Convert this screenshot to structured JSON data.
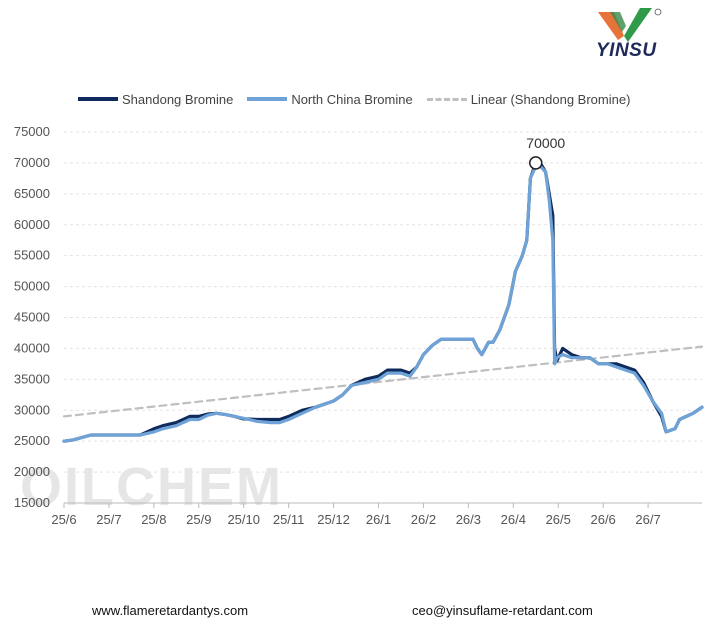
{
  "brand": {
    "logo_text": "YINSU",
    "watermark_text": "OILCHEM"
  },
  "footer": {
    "website": "www.flameretardantys.com",
    "email": "ceo@yinsuflame-retardant.com"
  },
  "colors": {
    "shandong": "#0e2b5c",
    "north_china": "#6fa3d8",
    "linear": "#bfbfbf",
    "grid": "#e3e3e3"
  },
  "chart_data": {
    "type": "line",
    "title": "",
    "xlabel": "",
    "ylabel": "",
    "ylim": [
      15000,
      75000
    ],
    "yticks": [
      15000,
      20000,
      25000,
      30000,
      35000,
      40000,
      45000,
      50000,
      55000,
      60000,
      65000,
      70000,
      75000
    ],
    "xlim": [
      "25/6",
      "26/7 (end)"
    ],
    "xticks": [
      "25/6",
      "25/7",
      "25/8",
      "25/9",
      "25/10",
      "25/11",
      "25/12",
      "26/1",
      "26/2",
      "26/3",
      "26/4",
      "26/5",
      "26/6",
      "26/7"
    ],
    "x_tick_positions_months": [
      0,
      1,
      2,
      3,
      4,
      5,
      6,
      7,
      8,
      9,
      10,
      11,
      12,
      13
    ],
    "grid": "horizontal",
    "legend_position": "top",
    "series": [
      {
        "name": "Shandong Bromine",
        "style": "solid",
        "points": [
          [
            0.0,
            25000
          ],
          [
            0.2,
            25200
          ],
          [
            0.6,
            26000
          ],
          [
            1.0,
            26000
          ],
          [
            1.5,
            26000
          ],
          [
            1.7,
            26000
          ],
          [
            2.0,
            27000
          ],
          [
            2.2,
            27500
          ],
          [
            2.5,
            28000
          ],
          [
            2.8,
            29000
          ],
          [
            3.0,
            29000
          ],
          [
            3.2,
            29400
          ],
          [
            3.4,
            29500
          ],
          [
            3.6,
            29300
          ],
          [
            3.8,
            29000
          ],
          [
            4.0,
            28600
          ],
          [
            4.3,
            28500
          ],
          [
            4.6,
            28500
          ],
          [
            4.8,
            28500
          ],
          [
            5.0,
            29000
          ],
          [
            5.3,
            30000
          ],
          [
            5.6,
            30500
          ],
          [
            6.0,
            31500
          ],
          [
            6.2,
            32500
          ],
          [
            6.4,
            34000
          ],
          [
            6.7,
            35000
          ],
          [
            7.0,
            35500
          ],
          [
            7.2,
            36500
          ],
          [
            7.5,
            36500
          ],
          [
            7.7,
            36000
          ],
          [
            7.85,
            37000
          ],
          [
            8.0,
            39000
          ],
          [
            8.2,
            40500
          ],
          [
            8.4,
            41500
          ],
          [
            8.6,
            41500
          ],
          [
            8.8,
            41500
          ],
          [
            9.0,
            41500
          ],
          [
            9.1,
            41500
          ],
          [
            9.2,
            40000
          ],
          [
            9.3,
            39000
          ],
          [
            9.45,
            41000
          ],
          [
            9.55,
            41000
          ],
          [
            9.7,
            43000
          ],
          [
            9.9,
            47000
          ],
          [
            10.05,
            52500
          ],
          [
            10.2,
            55000
          ],
          [
            10.3,
            57500
          ],
          [
            10.38,
            67500
          ],
          [
            10.5,
            70000
          ],
          [
            10.6,
            70000
          ],
          [
            10.72,
            68500
          ],
          [
            10.8,
            65000
          ],
          [
            10.88,
            61500
          ],
          [
            10.92,
            40000
          ],
          [
            10.97,
            38000
          ],
          [
            11.1,
            40000
          ],
          [
            11.3,
            39000
          ],
          [
            11.5,
            38500
          ],
          [
            11.7,
            38500
          ],
          [
            11.9,
            37500
          ],
          [
            12.1,
            37500
          ],
          [
            12.3,
            37500
          ],
          [
            12.5,
            37000
          ],
          [
            12.7,
            36500
          ],
          [
            12.9,
            34500
          ],
          [
            13.1,
            31500
          ],
          [
            13.3,
            29000
          ],
          [
            13.4,
            26500
          ],
          [
            13.6,
            27000
          ],
          [
            13.7,
            28500
          ],
          [
            14.0,
            29500
          ],
          [
            14.2,
            30500
          ]
        ]
      },
      {
        "name": "North China Bromine",
        "style": "solid",
        "points": [
          [
            0.0,
            25000
          ],
          [
            0.2,
            25200
          ],
          [
            0.6,
            26000
          ],
          [
            1.0,
            26000
          ],
          [
            1.5,
            26000
          ],
          [
            1.7,
            26000
          ],
          [
            2.0,
            26500
          ],
          [
            2.2,
            27000
          ],
          [
            2.5,
            27500
          ],
          [
            2.8,
            28500
          ],
          [
            3.0,
            28500
          ],
          [
            3.2,
            29200
          ],
          [
            3.4,
            29500
          ],
          [
            3.6,
            29300
          ],
          [
            3.8,
            29000
          ],
          [
            4.0,
            28700
          ],
          [
            4.3,
            28200
          ],
          [
            4.6,
            28000
          ],
          [
            4.8,
            28000
          ],
          [
            5.0,
            28500
          ],
          [
            5.3,
            29500
          ],
          [
            5.6,
            30500
          ],
          [
            6.0,
            31500
          ],
          [
            6.2,
            32500
          ],
          [
            6.4,
            34000
          ],
          [
            6.7,
            34500
          ],
          [
            7.0,
            35000
          ],
          [
            7.2,
            36000
          ],
          [
            7.5,
            36000
          ],
          [
            7.7,
            35500
          ],
          [
            7.85,
            37000
          ],
          [
            8.0,
            39000
          ],
          [
            8.2,
            40500
          ],
          [
            8.4,
            41500
          ],
          [
            8.6,
            41500
          ],
          [
            8.8,
            41500
          ],
          [
            9.0,
            41500
          ],
          [
            9.1,
            41500
          ],
          [
            9.2,
            40000
          ],
          [
            9.3,
            39000
          ],
          [
            9.45,
            41000
          ],
          [
            9.55,
            41000
          ],
          [
            9.7,
            43000
          ],
          [
            9.9,
            47000
          ],
          [
            10.05,
            52500
          ],
          [
            10.2,
            55000
          ],
          [
            10.3,
            57500
          ],
          [
            10.38,
            67500
          ],
          [
            10.5,
            69500
          ],
          [
            10.6,
            69500
          ],
          [
            10.72,
            68500
          ],
          [
            10.8,
            64000
          ],
          [
            10.88,
            57500
          ],
          [
            10.92,
            37500
          ],
          [
            10.97,
            38500
          ],
          [
            11.1,
            39000
          ],
          [
            11.3,
            38500
          ],
          [
            11.5,
            38500
          ],
          [
            11.7,
            38500
          ],
          [
            11.9,
            37500
          ],
          [
            12.1,
            37500
          ],
          [
            12.3,
            37000
          ],
          [
            12.5,
            36500
          ],
          [
            12.7,
            36000
          ],
          [
            12.9,
            34000
          ],
          [
            13.1,
            31500
          ],
          [
            13.3,
            29500
          ],
          [
            13.4,
            26500
          ],
          [
            13.6,
            27000
          ],
          [
            13.7,
            28500
          ],
          [
            14.0,
            29500
          ],
          [
            14.2,
            30500
          ]
        ]
      },
      {
        "name": "Linear (Shandong Bromine)",
        "style": "dashed",
        "points": [
          [
            0.0,
            29000
          ],
          [
            14.2,
            40300
          ]
        ]
      }
    ],
    "annotations": [
      {
        "label": "70000",
        "x": 10.5,
        "y": 70000,
        "marker": "circle"
      }
    ]
  }
}
